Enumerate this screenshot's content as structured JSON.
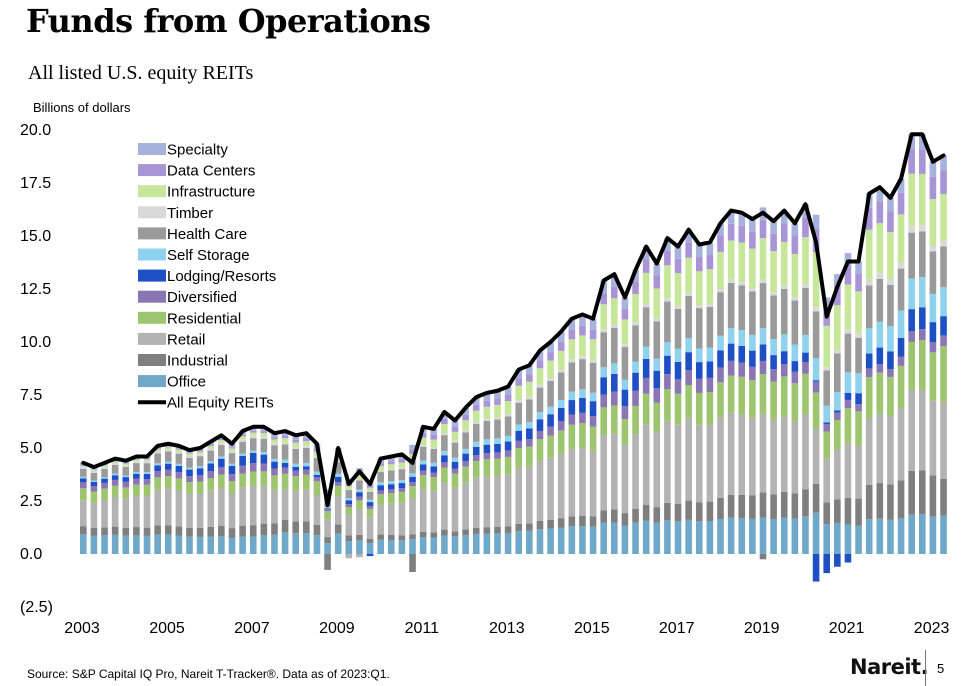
{
  "page": {
    "title": "Funds from Operations",
    "subtitle": "All listed U.S. equity REITs",
    "source": "Source: S&P Capital IQ Pro, Nareit T-Tracker®. Data as of 2023:Q1.",
    "logo": "Nareit.",
    "page_number": "5"
  },
  "colors": {
    "Office": "#6fa8c8",
    "Industrial": "#7f7f7f",
    "Retail": "#b3b3b3",
    "Residential": "#9dc46f",
    "Diversified": "#8a76b4",
    "Lodging/Resorts": "#1f4fc4",
    "Self Storage": "#8fd2ee",
    "Health Care": "#9a9a9a",
    "Timber": "#d9d9d9",
    "Infrastructure": "#c6e79a",
    "Data Centers": "#a994d8",
    "Specialty": "#a6b2db",
    "All Equity REITs": "#000000"
  },
  "chart_data": {
    "type": "bar",
    "subtype": "stacked bar with line overlay",
    "title": "Funds from Operations",
    "subtitle": "All listed U.S. equity REITs",
    "ylabel": "Billions of dollars",
    "xlabel": "",
    "ylim": [
      -2.5,
      20.0
    ],
    "yticks": [
      "20.0",
      "17.5",
      "15.0",
      "12.5",
      "10.0",
      "7.5",
      "5.0",
      "2.5",
      "0.0",
      "(2.5)"
    ],
    "xticks": [
      "2003",
      "2005",
      "2007",
      "2009",
      "2011",
      "2013",
      "2015",
      "2017",
      "2019",
      "2021",
      "2023"
    ],
    "x_start": 2003,
    "legend": [
      "Specialty",
      "Data Centers",
      "Infrastructure",
      "Timber",
      "Health Care",
      "Self Storage",
      "Lodging/Resorts",
      "Diversified",
      "Residential",
      "Retail",
      "Industrial",
      "Office",
      "All Equity REITs"
    ],
    "legend_placement": "upper-left",
    "periods_per_year": 4,
    "series_order": [
      "Office",
      "Industrial",
      "Retail",
      "Residential",
      "Diversified",
      "Lodging/Resorts",
      "Self Storage",
      "Health Care",
      "Timber",
      "Infrastructure",
      "Data Centers",
      "Specialty"
    ],
    "anchor_quarters": [
      0,
      8,
      16,
      19,
      23,
      24,
      26,
      28,
      32,
      40,
      48,
      52,
      56,
      60,
      64,
      68,
      69,
      71,
      72,
      73,
      76,
      78,
      80,
      81
    ],
    "anchors": {
      "Office": [
        1.0,
        0.95,
        0.85,
        0.7,
        0.55,
        0.8,
        0.75,
        0.95,
        1.1,
        1.3,
        1.45,
        1.55,
        1.6,
        1.65,
        1.65,
        1.6,
        1.5,
        1.45,
        1.45,
        1.55,
        1.75,
        1.8,
        1.85,
        1.8
      ],
      "Industrial": [
        0.4,
        0.45,
        0.55,
        0.4,
        0.3,
        0.35,
        0.3,
        0.35,
        0.35,
        0.4,
        0.55,
        0.7,
        0.85,
        1.0,
        1.15,
        1.15,
        1.05,
        1.1,
        1.3,
        1.5,
        1.8,
        2.0,
        2.05,
        1.7
      ],
      "Retail": [
        1.3,
        1.8,
        1.9,
        1.0,
        0.9,
        1.1,
        1.4,
        2.0,
        2.8,
        3.2,
        3.5,
        3.7,
        3.9,
        3.8,
        3.6,
        3.2,
        2.0,
        2.3,
        2.7,
        2.9,
        3.5,
        3.7,
        3.7,
        3.6
      ],
      "Residential": [
        0.6,
        0.6,
        0.7,
        0.5,
        0.4,
        0.4,
        0.5,
        0.7,
        0.9,
        1.1,
        1.3,
        1.4,
        1.5,
        1.65,
        1.8,
        1.7,
        1.3,
        1.4,
        1.7,
        1.9,
        2.0,
        2.2,
        2.4,
        2.6
      ],
      "Diversified": [
        0.3,
        0.3,
        0.4,
        0.2,
        0.1,
        0.15,
        0.2,
        0.25,
        0.3,
        0.4,
        0.55,
        0.75,
        0.7,
        0.7,
        0.6,
        0.5,
        0.4,
        0.35,
        0.4,
        0.4,
        0.4,
        0.5,
        0.5,
        0.5
      ],
      "Lodging/Resorts": [
        0.2,
        0.3,
        0.5,
        0.15,
        0.05,
        0.2,
        0.25,
        0.35,
        0.4,
        0.55,
        0.8,
        0.9,
        0.85,
        0.8,
        0.75,
        0.4,
        0.05,
        0.1,
        0.35,
        0.6,
        0.9,
        1.0,
        1.0,
        0.9
      ],
      "Self Storage": [
        0.08,
        0.1,
        0.12,
        0.1,
        0.1,
        0.12,
        0.15,
        0.2,
        0.25,
        0.35,
        0.45,
        0.55,
        0.65,
        0.7,
        0.75,
        0.75,
        0.8,
        0.85,
        1.0,
        1.1,
        1.3,
        1.4,
        1.4,
        1.35
      ],
      "Health Care": [
        0.4,
        0.5,
        0.6,
        0.5,
        0.4,
        0.45,
        0.5,
        0.7,
        0.9,
        1.2,
        1.6,
        1.8,
        1.95,
        2.05,
        2.05,
        2.0,
        1.7,
        1.8,
        1.9,
        1.95,
        2.1,
        2.1,
        2.1,
        1.9
      ],
      "Timber": [
        0.1,
        0.1,
        0.12,
        0.05,
        0.05,
        0.05,
        0.07,
        0.08,
        0.1,
        0.15,
        0.15,
        0.15,
        0.15,
        0.15,
        0.15,
        0.15,
        0.15,
        0.15,
        0.2,
        0.25,
        0.3,
        0.3,
        0.3,
        0.25
      ],
      "Infrastructure": [
        0.05,
        0.1,
        0.15,
        0.15,
        0.15,
        0.2,
        0.2,
        0.3,
        0.5,
        0.8,
        1.1,
        1.4,
        1.6,
        1.75,
        1.9,
        2.0,
        2.0,
        2.1,
        2.2,
        2.3,
        2.4,
        2.4,
        2.3,
        2.2
      ],
      "Data Centers": [
        0.0,
        0.02,
        0.08,
        0.08,
        0.1,
        0.1,
        0.15,
        0.2,
        0.3,
        0.4,
        0.5,
        0.6,
        0.7,
        0.75,
        0.8,
        0.85,
        0.85,
        0.9,
        0.95,
        1.0,
        1.05,
        1.1,
        1.1,
        1.1
      ],
      "Specialty": [
        0.15,
        0.15,
        0.2,
        0.15,
        0.15,
        0.2,
        0.25,
        0.3,
        0.4,
        0.5,
        0.6,
        0.6,
        0.6,
        0.6,
        0.6,
        0.55,
        0.5,
        0.55,
        0.6,
        0.65,
        0.7,
        0.7,
        0.75,
        0.7
      ]
    },
    "negative_bars": [
      {
        "quarter": 23,
        "category": "Industrial",
        "value": -0.75
      },
      {
        "quarter": 25,
        "category": "Retail",
        "value": -0.2
      },
      {
        "quarter": 26,
        "category": "Retail",
        "value": -0.15
      },
      {
        "quarter": 27,
        "category": "Lodging/Resorts",
        "value": -0.1
      },
      {
        "quarter": 31,
        "category": "Industrial",
        "value": -0.85
      },
      {
        "quarter": 64,
        "category": "Industrial",
        "value": -0.25
      },
      {
        "quarter": 69,
        "category": "Lodging/Resorts",
        "value": -1.3
      },
      {
        "quarter": 70,
        "category": "Lodging/Resorts",
        "value": -0.9
      },
      {
        "quarter": 71,
        "category": "Lodging/Resorts",
        "value": -0.6
      },
      {
        "quarter": 72,
        "category": "Lodging/Resorts",
        "value": -0.4
      }
    ],
    "total_line": {
      "name": "All Equity REITs",
      "values": [
        4.3,
        4.1,
        4.3,
        4.5,
        4.4,
        4.6,
        4.6,
        5.1,
        5.2,
        5.1,
        4.9,
        5.0,
        5.3,
        5.6,
        5.2,
        5.8,
        6.0,
        6.0,
        5.7,
        5.8,
        5.6,
        5.7,
        5.2,
        2.3,
        5.0,
        3.3,
        3.9,
        3.3,
        4.5,
        4.6,
        4.7,
        4.3,
        6.0,
        5.9,
        6.7,
        6.3,
        6.9,
        7.4,
        7.6,
        7.7,
        7.9,
        8.7,
        8.9,
        9.6,
        10.0,
        10.5,
        11.1,
        11.3,
        11.1,
        12.9,
        13.2,
        12.1,
        13.4,
        14.5,
        13.7,
        14.9,
        14.5,
        15.3,
        14.6,
        14.7,
        15.6,
        16.2,
        16.1,
        15.8,
        16.1,
        15.7,
        16.2,
        15.6,
        16.5,
        14.7,
        11.2,
        12.6,
        13.8,
        13.8,
        17.0,
        17.3,
        16.8,
        17.7,
        19.8,
        19.8,
        18.5,
        18.8
      ]
    }
  }
}
